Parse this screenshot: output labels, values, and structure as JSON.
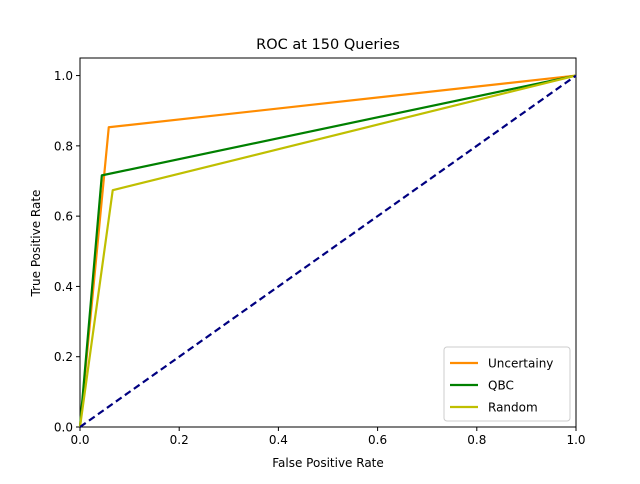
{
  "chart_data": {
    "type": "line",
    "title": "ROC at 150 Queries",
    "xlabel": "False Positive Rate",
    "ylabel": "True Positive Rate",
    "xlim": [
      0,
      1
    ],
    "ylim": [
      0,
      1.05
    ],
    "xticks": [
      "0.0",
      "0.2",
      "0.4",
      "0.6",
      "0.8",
      "1.0"
    ],
    "yticks": [
      "0.0",
      "0.2",
      "0.4",
      "0.6",
      "0.8",
      "1.0"
    ],
    "grid": false,
    "legend_position": "lower-right",
    "series": [
      {
        "name": "Uncertainy",
        "color": "#ff8c00",
        "line_style": "solid",
        "points": [
          [
            0,
            0
          ],
          [
            0.058,
            0.853
          ],
          [
            1,
            1
          ]
        ]
      },
      {
        "name": "QBC",
        "color": "#008000",
        "line_style": "solid",
        "points": [
          [
            0,
            0
          ],
          [
            0.044,
            0.716
          ],
          [
            1,
            1
          ]
        ]
      },
      {
        "name": "Random",
        "color": "#bfbf00",
        "line_style": "solid",
        "points": [
          [
            0,
            0
          ],
          [
            0.066,
            0.674
          ],
          [
            1,
            1
          ]
        ]
      }
    ],
    "reference_line": {
      "color": "#000080",
      "line_style": "dashed",
      "points": [
        [
          0,
          0
        ],
        [
          1,
          1
        ]
      ]
    }
  }
}
